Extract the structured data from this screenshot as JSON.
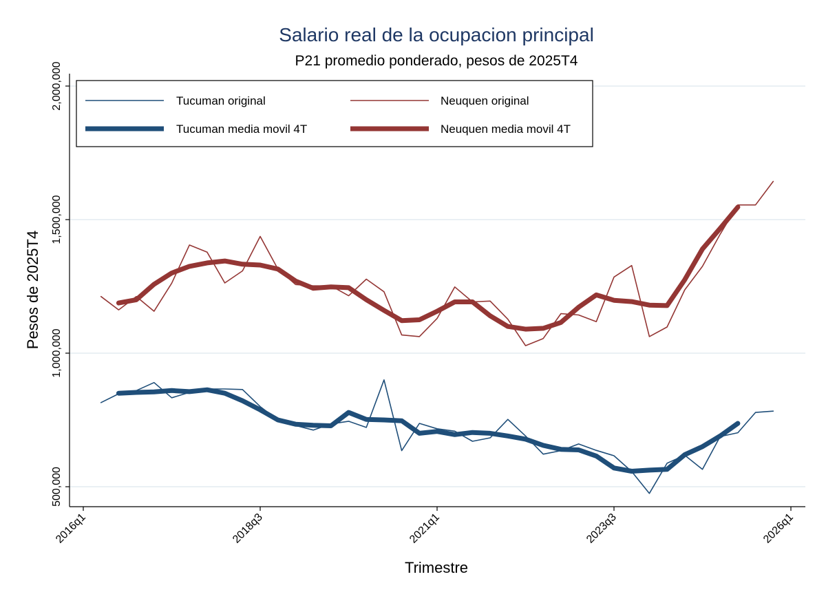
{
  "chart_data": {
    "type": "line",
    "title": "Salario real de la ocupacion principal",
    "subtitle": "P21 promedio ponderado, pesos de 2025T4",
    "xlabel": "Trimestre",
    "ylabel": "Pesos de 2025T4",
    "xlim": [
      "2016q1",
      "2026q1"
    ],
    "ylim": [
      420000,
      2050000
    ],
    "y_ticks": [
      500000,
      1000000,
      1500000,
      2000000
    ],
    "y_tick_labels": [
      "500,000",
      "1,000,000",
      "1,500,000",
      "2,000,000"
    ],
    "x_ticks": [
      "2016q1",
      "2018q3",
      "2021q1",
      "2023q3",
      "2026q1"
    ],
    "grid": "horizontal",
    "legend_position": "top",
    "x": [
      "2016q2",
      "2016q3",
      "2016q4",
      "2017q1",
      "2017q2",
      "2017q3",
      "2017q4",
      "2018q1",
      "2018q2",
      "2018q3",
      "2018q4",
      "2019q1",
      "2019q2",
      "2019q3",
      "2019q4",
      "2020q1",
      "2020q2",
      "2020q3",
      "2020q4",
      "2021q1",
      "2021q2",
      "2021q3",
      "2021q4",
      "2022q1",
      "2022q2",
      "2022q3",
      "2022q4",
      "2023q1",
      "2023q2",
      "2023q3",
      "2023q4",
      "2024q1",
      "2024q2",
      "2024q3",
      "2024q4",
      "2025q1",
      "2025q2",
      "2025q3",
      "2025q4"
    ],
    "series": [
      {
        "name": "Tucuman original",
        "color": "#1f4e79",
        "style": "thin",
        "values": [
          815000,
          848000,
          860000,
          890000,
          833000,
          853000,
          866000,
          866000,
          864000,
          800000,
          750000,
          729000,
          712000,
          735000,
          745000,
          722000,
          900000,
          635000,
          737000,
          717000,
          708000,
          670000,
          683000,
          752000,
          690000,
          622000,
          635000,
          660000,
          636000,
          616000,
          557000,
          475000,
          588000,
          618000,
          565000,
          688000,
          702000,
          778000,
          783000
        ]
      },
      {
        "name": "Neuquen original",
        "color": "#943634",
        "style": "thin",
        "values": [
          1212000,
          1162000,
          1212000,
          1157000,
          1262000,
          1405000,
          1378000,
          1263000,
          1308000,
          1437000,
          1315000,
          1257000,
          1252000,
          1252000,
          1215000,
          1277000,
          1230000,
          1068000,
          1062000,
          1130000,
          1248000,
          1192000,
          1195000,
          1127000,
          1028000,
          1055000,
          1148000,
          1143000,
          1118000,
          1285000,
          1328000,
          1062000,
          1098000,
          1237000,
          1325000,
          1445000,
          1555000,
          1555000,
          1643000
        ]
      },
      {
        "name": "Tucuman media movil 4T",
        "color": "#1f4e79",
        "style": "thick",
        "values": [
          null,
          850000,
          853000,
          855000,
          860000,
          856000,
          863000,
          850000,
          822000,
          788000,
          750000,
          734000,
          730000,
          728000,
          778000,
          752000,
          750000,
          747000,
          700000,
          707000,
          695000,
          703000,
          700000,
          690000,
          678000,
          655000,
          640000,
          638000,
          615000,
          570000,
          558000,
          562000,
          565000,
          620000,
          650000,
          690000,
          737000,
          null,
          null
        ]
      },
      {
        "name": "Neuquen media movil 4T",
        "color": "#943634",
        "style": "thick",
        "values": [
          null,
          1188000,
          1200000,
          1258000,
          1300000,
          1325000,
          1338000,
          1345000,
          1333000,
          1330000,
          1315000,
          1270000,
          1243000,
          1248000,
          1245000,
          1200000,
          1160000,
          1122000,
          1125000,
          1157000,
          1192000,
          1192000,
          1140000,
          1100000,
          1090000,
          1093000,
          1115000,
          1172000,
          1218000,
          1198000,
          1193000,
          1180000,
          1178000,
          1275000,
          1390000,
          1467000,
          1547000,
          null,
          null
        ]
      }
    ]
  }
}
